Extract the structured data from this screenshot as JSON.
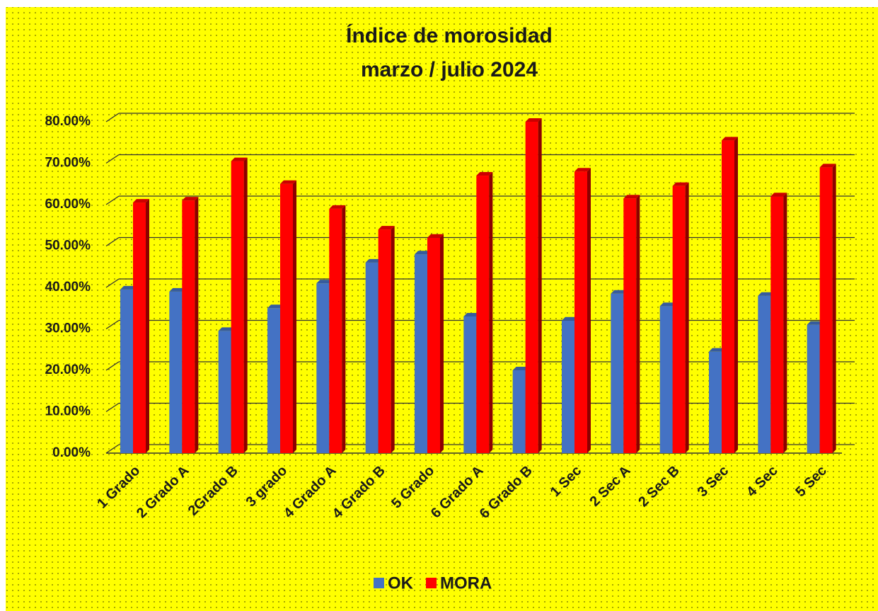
{
  "chart_data": {
    "type": "bar3d",
    "title": "Índice de morosidad",
    "subtitle": "marzo / julio 2024",
    "categories": [
      "1 Grado",
      "2 Grado A",
      "2Grado B",
      "3 grado",
      "4 Grado A",
      "4 Grado B",
      "5 Grado",
      "6 Grado A",
      "6 Grado B",
      "1 Sec",
      "2 Sec A",
      "2 Sec B",
      "3 Sec",
      "4 Sec",
      "5 Sec"
    ],
    "series": [
      {
        "name": "OK",
        "color": "#4472c4",
        "values": [
          39.5,
          39,
          29.5,
          35,
          41,
          46,
          48,
          33,
          20,
          32,
          38.5,
          35.5,
          24.5,
          38,
          31
        ]
      },
      {
        "name": "MORA",
        "color": "#ff0000",
        "values": [
          60.5,
          61,
          70.5,
          65,
          59,
          54,
          52,
          67,
          80,
          68,
          61.5,
          64.5,
          75.5,
          62,
          69
        ]
      }
    ],
    "ylim": [
      0,
      80
    ],
    "yticks": [
      {
        "value": 0,
        "label": "0.00%"
      },
      {
        "value": 10,
        "label": "10.00%"
      },
      {
        "value": 20,
        "label": "20.00%"
      },
      {
        "value": 30,
        "label": "30.00%"
      },
      {
        "value": 40,
        "label": "40.00%"
      },
      {
        "value": 50,
        "label": "50.00%"
      },
      {
        "value": 60,
        "label": "60.00%"
      },
      {
        "value": 70,
        "label": "70.00%"
      },
      {
        "value": 80,
        "label": "80.00%"
      }
    ],
    "grid": true,
    "legend": "bottom"
  }
}
